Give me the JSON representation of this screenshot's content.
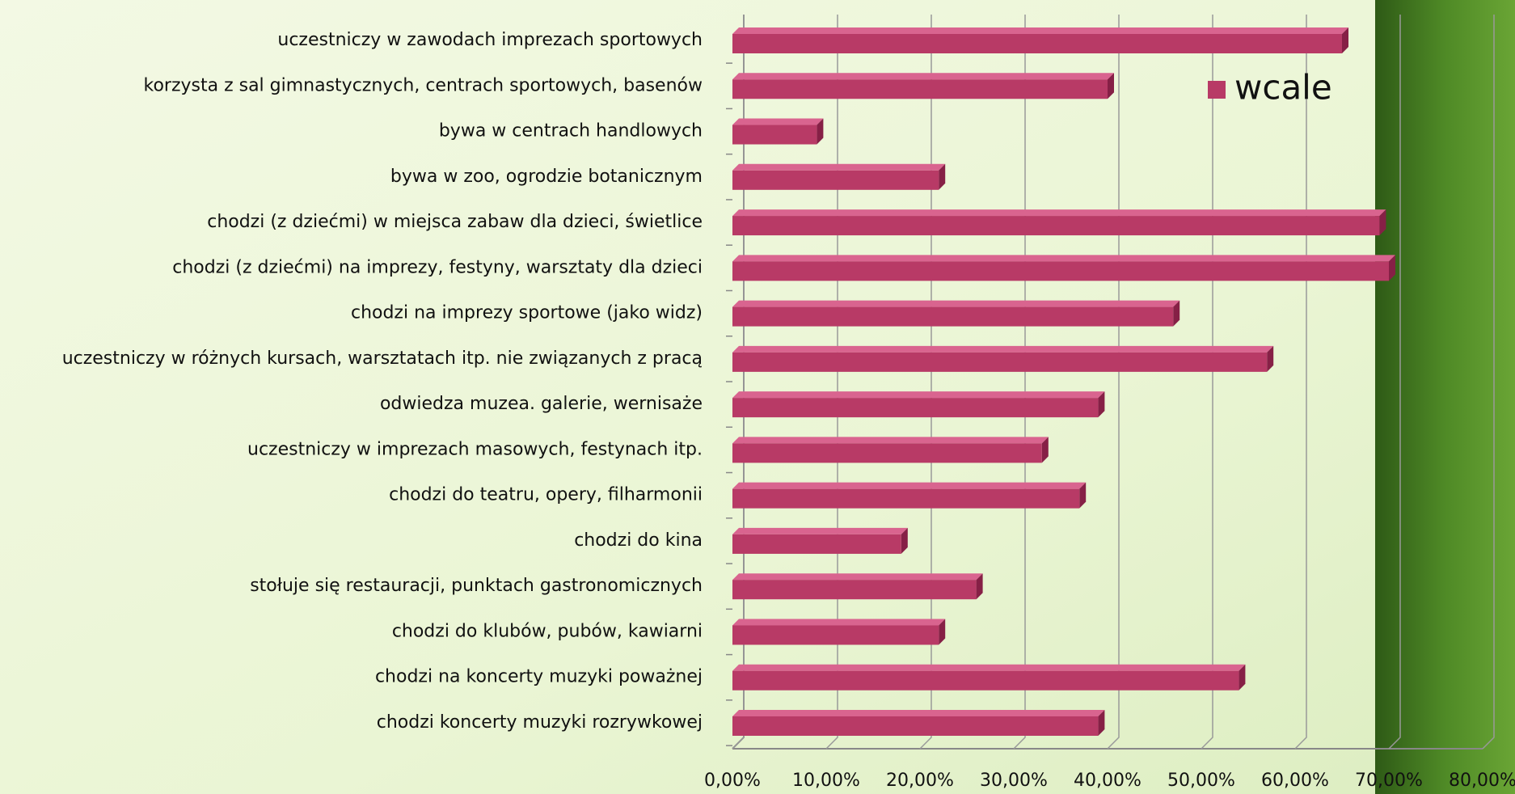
{
  "chart_data": {
    "type": "bar",
    "orientation": "horizontal",
    "categories": [
      "uczestniczy w zawodach  imprezach sportowych",
      "korzysta z sal gimnastycznych, centrach sportowych, basenów",
      "bywa w centrach handlowych ",
      "bywa w zoo, ogrodzie botanicznym ",
      "chodzi (z dziećmi) w miejsca zabaw dla dzieci, świetlice",
      "chodzi (z dziećmi) na imprezy, festyny, warsztaty dla dzieci",
      "chodzi na imprezy sportowe (jako widz)",
      "uczestniczy w różnych kursach, warsztatach itp. nie związanych z pracą",
      "odwiedza muzea. galerie, wernisaże ",
      "uczestniczy w imprezach masowych, festynach itp. ",
      "chodzi do teatru, opery, filharmonii",
      "chodzi do kina",
      "stołuje się restauracji, punktach gastronomicznych",
      "chodzi do klubów, pubów, kawiarni ",
      "chodzi na koncerty muzyki poważnej",
      "chodzi koncerty muzyki rozrywkowej"
    ],
    "series": [
      {
        "name": "wcale",
        "color": "#b83a66",
        "values": [
          65,
          40,
          9,
          22,
          69,
          70,
          47,
          57,
          39,
          33,
          37,
          18,
          26,
          22,
          54,
          39
        ]
      }
    ],
    "xlim": [
      0,
      80
    ],
    "xticks": [
      {
        "value": 0,
        "label": "0,00%"
      },
      {
        "value": 10,
        "label": "10,00%"
      },
      {
        "value": 20,
        "label": "20,00%"
      },
      {
        "value": 30,
        "label": "30,00%"
      },
      {
        "value": 40,
        "label": "40,00%"
      },
      {
        "value": 50,
        "label": "50,00%"
      },
      {
        "value": 60,
        "label": "60,00%"
      },
      {
        "value": 70,
        "label": "70,00%"
      },
      {
        "value": 80,
        "label": "80,00%"
      }
    ],
    "grid": true,
    "legend": "upper right"
  }
}
